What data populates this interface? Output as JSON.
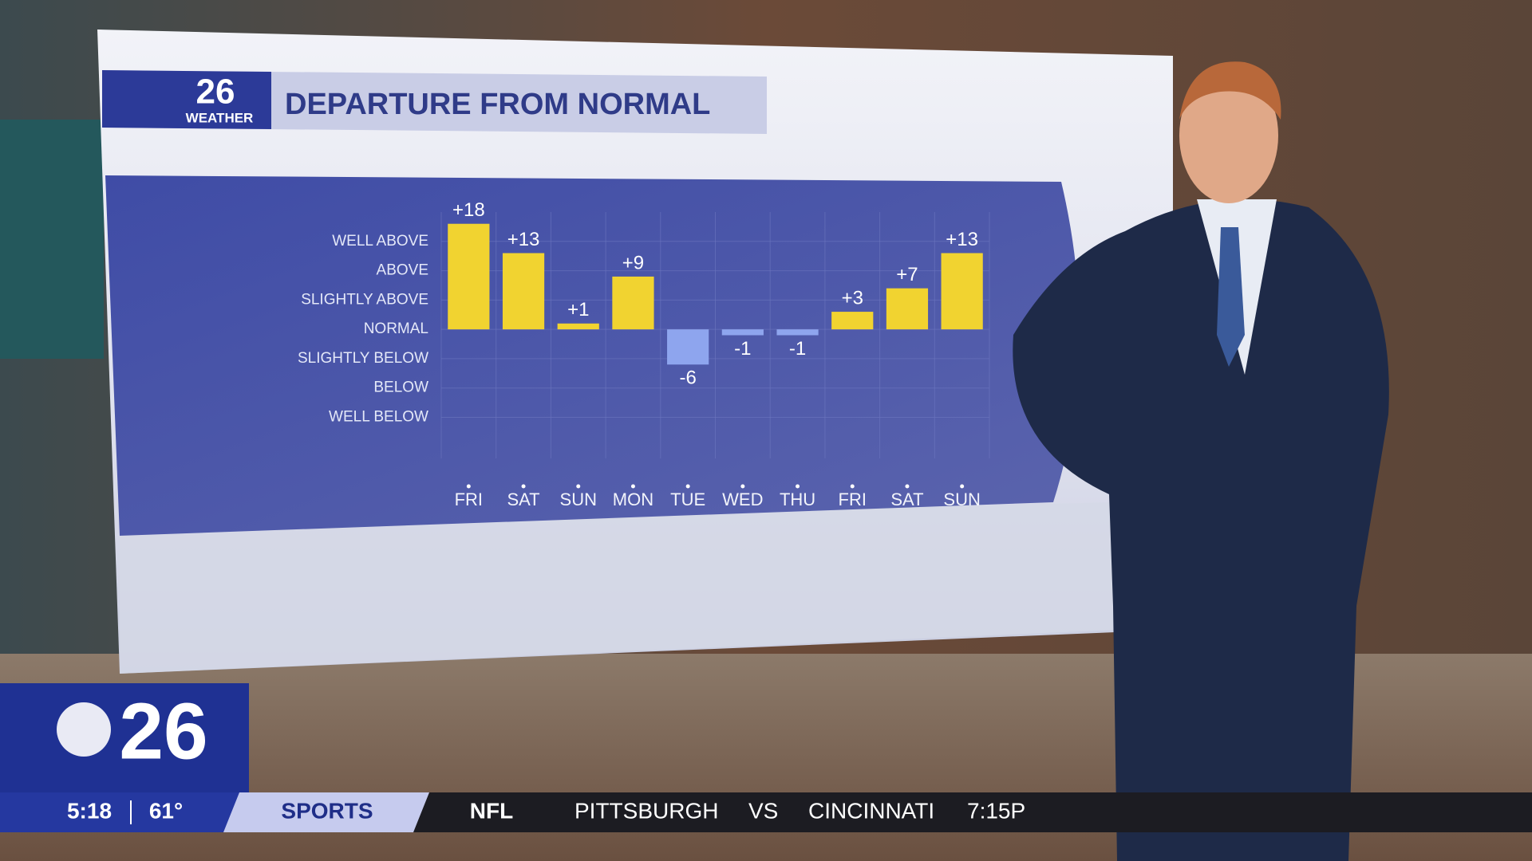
{
  "chart_data": {
    "type": "bar",
    "title": "DEPARTURE FROM NORMAL",
    "categories": [
      "FRI",
      "SAT",
      "SUN",
      "MON",
      "TUE",
      "WED",
      "THU",
      "FRI",
      "SAT",
      "SUN"
    ],
    "values": [
      18,
      13,
      1,
      9,
      -6,
      -1,
      -1,
      3,
      7,
      13
    ],
    "value_labels": [
      "+18",
      "+13",
      "+1",
      "+9",
      "-6",
      "-1",
      "-1",
      "+3",
      "+7",
      "+13"
    ],
    "color": "#f1d330",
    "negative_color": "#8ea5ee",
    "ylim": [
      -22,
      20
    ],
    "yticks": [
      {
        "value": 15,
        "label": "WELL ABOVE"
      },
      {
        "value": 10,
        "label": "ABOVE"
      },
      {
        "value": 5,
        "label": "SLIGHTLY ABOVE"
      },
      {
        "value": 0,
        "label": "NORMAL"
      },
      {
        "value": -5,
        "label": "SLIGHTLY BELOW"
      },
      {
        "value": -10,
        "label": "BELOW"
      },
      {
        "value": -15,
        "label": "WELL BELOW"
      }
    ],
    "grid": true
  },
  "logo": {
    "number": "26",
    "label": "WEATHER"
  },
  "station": {
    "number": "26"
  },
  "ticker": {
    "time": "5:18",
    "temperature": "61°",
    "section": "SPORTS",
    "league": "NFL",
    "team1": "PITTSBURGH",
    "vs": "VS",
    "team2": "CINCINNATI",
    "game_time": "7:15P"
  }
}
